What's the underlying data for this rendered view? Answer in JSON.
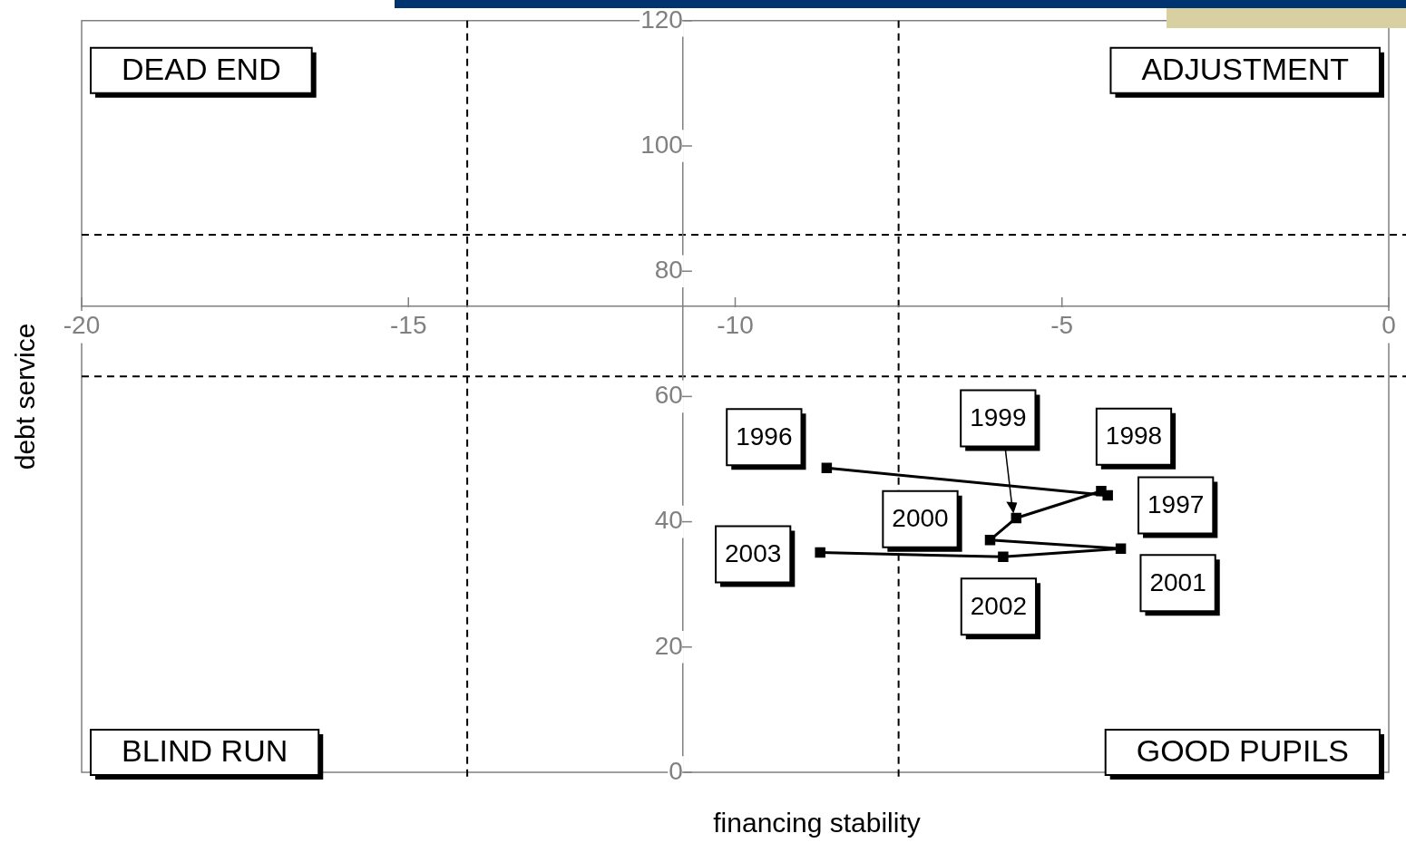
{
  "chart_data": {
    "type": "line",
    "xlabel": "financing stability",
    "ylabel": "debt service",
    "x": [
      -8.6,
      -4.3,
      -4.4,
      -5.7,
      -6.1,
      -4.1,
      -5.9,
      -8.7
    ],
    "series": [
      {
        "color": "#000000",
        "values": [
          48.6,
          44.2,
          44.9,
          40.6,
          37.1,
          35.7,
          34.4,
          35.1
        ]
      }
    ],
    "marker": "square",
    "line_style": "solid",
    "xlim": [
      -20,
      0
    ],
    "ylim": [
      0,
      120
    ],
    "xticks": [
      -20,
      -15,
      -10,
      -5,
      0
    ],
    "yticks": [
      0,
      20,
      40,
      60,
      80,
      100,
      120
    ],
    "ref_lines": [
      {
        "axis": "x",
        "value": -14.1,
        "color": "#000000",
        "line_style": "dashed"
      },
      {
        "axis": "x",
        "value": -7.5,
        "color": "#000000",
        "line_style": "dashed"
      },
      {
        "axis": "y",
        "value": 85.8,
        "color": "#000000",
        "line_style": "dashed"
      },
      {
        "axis": "y",
        "value": 63.2,
        "color": "#000000",
        "line_style": "dashed"
      }
    ],
    "annotations": [
      {
        "text": "1996",
        "x": -8.6,
        "y": 48.6
      },
      {
        "text": "1997",
        "x": -4.3,
        "y": 44.2
      },
      {
        "text": "1998",
        "x": -4.4,
        "y": 44.9
      },
      {
        "text": "1999",
        "x": -5.7,
        "y": 40.6
      },
      {
        "text": "2000",
        "x": -6.1,
        "y": 37.1
      },
      {
        "text": "2001",
        "x": -4.1,
        "y": 35.7
      },
      {
        "text": "2002",
        "x": -5.9,
        "y": 34.4
      },
      {
        "text": "2003",
        "x": -8.7,
        "y": 35.1
      },
      "DEAD END",
      "ADJUSTMENT",
      "BLIND RUN",
      "GOOD PUPILS"
    ]
  }
}
